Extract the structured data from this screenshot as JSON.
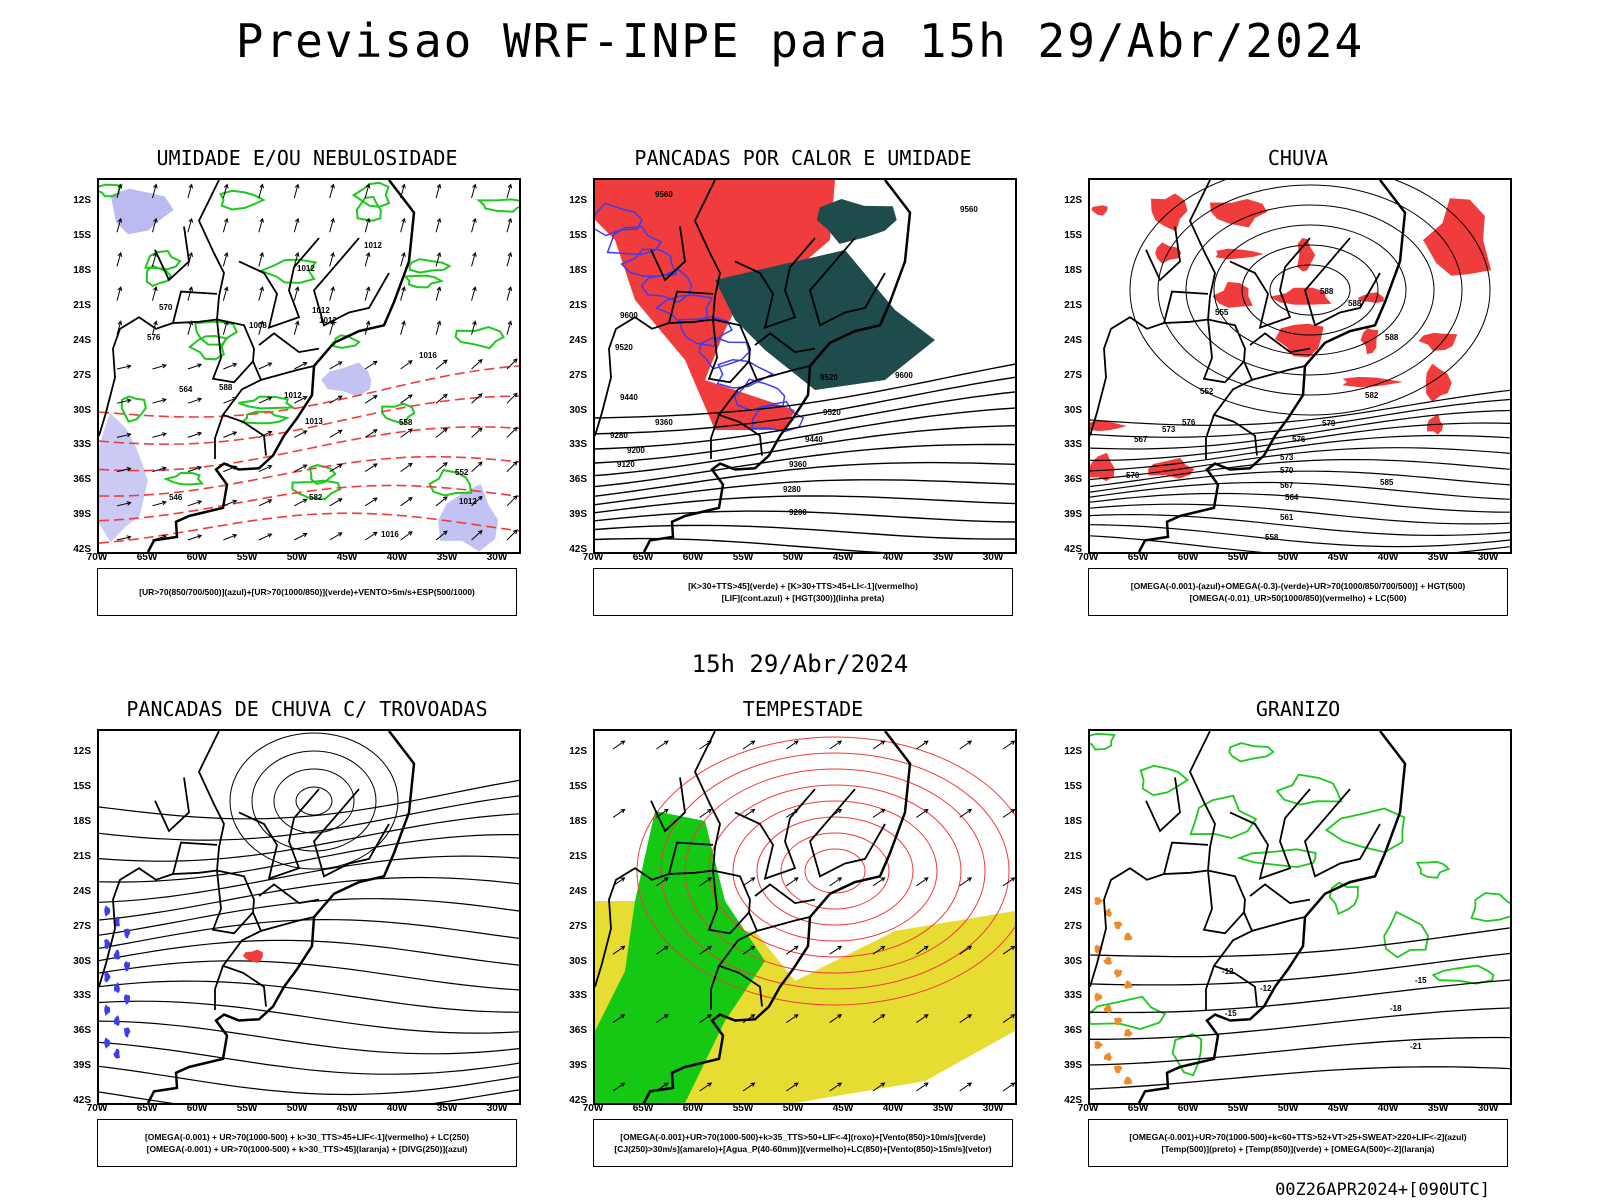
{
  "header": {
    "title": "Previsao WRF-INPE  para 15h 29/Abr/2024",
    "mid_date": "15h 29/Abr/2024",
    "run": "00Z26APR2024+[090UTC]"
  },
  "axes": {
    "lat_ticks": [
      "12S",
      "15S",
      "18S",
      "21S",
      "24S",
      "27S",
      "30S",
      "33S",
      "36S",
      "39S",
      "42S"
    ],
    "lon_ticks": [
      "70W",
      "65W",
      "60W",
      "55W",
      "50W",
      "45W",
      "40W",
      "35W",
      "30W"
    ]
  },
  "colors": {
    "frame": "#000000",
    "humidity_fill": "#b4b4f0",
    "green_contour": "#1ec81e",
    "red": "#f03c3c",
    "blue": "#3c3cf0",
    "dark_teal": "#1e4b4b",
    "yellow": "#e6dc32",
    "bright_green": "#14c814",
    "orange": "#f08c28"
  },
  "panels": [
    {
      "id": "umidade",
      "title": "UMIDADE E/OU NEBULOSIDADE",
      "legend": [
        "[UR>70(850/700/500)](azul)+[UR>70(1000/850)](verde)+VENTO>5m/s+ESP(500/1000)"
      ],
      "contour_labels": [
        "1012",
        "1012",
        "1012",
        "1008",
        "1012",
        "1016",
        "1012",
        "1013",
        "1012",
        "1016",
        "570",
        "576",
        "564",
        "558",
        "552",
        "546",
        "582",
        "588"
      ]
    },
    {
      "id": "pancadas-calor",
      "title": "PANCADAS POR CALOR E UMIDADE",
      "legend": [
        "[K>30+TTS>45](verde) + [K>30+TTS>45+LI<-1](vermelho)",
        "[LIF](cont.azul) + [HGT(300)](linha preta)"
      ],
      "contour_labels": [
        "9560",
        "9560",
        "9600",
        "9520",
        "9520",
        "9440",
        "9360",
        "9280",
        "9200",
        "9120",
        "9600",
        "9520",
        "9440",
        "9360",
        "9280",
        "9200"
      ]
    },
    {
      "id": "chuva",
      "title": "CHUVA",
      "legend": [
        "[OMEGA(-0.001)-(azul)+OMEGA(-0.3)-(verde)+UR>70(1000/850/700/500)] + HGT(500)",
        "[OMEGA(-0.01)_UR>50(1000/850)(vermelho) + LC(500)"
      ],
      "contour_labels": [
        "588",
        "588",
        "588",
        "585",
        "582",
        "579",
        "576",
        "573",
        "570",
        "567",
        "564",
        "561",
        "558",
        "555",
        "552",
        "576",
        "573",
        "570",
        "567"
      ]
    },
    {
      "id": "trovoadas",
      "title": "PANCADAS DE CHUVA C/ TROVOADAS",
      "legend": [
        "[OMEGA(-0.001) + UR>70(1000-500) + k>30_TTS>45+LIF<-1](vermelho) + LC(250)",
        "[OMEGA(-0.001) + UR>70(1000-500) + k>30_TTS>45](laranja) + [DIVG(250)](azul)"
      ],
      "contour_labels": []
    },
    {
      "id": "tempestade",
      "title": "TEMPESTADE",
      "legend": [
        "[OMEGA(-0.001)+UR>70(1000-500)+k>35_TTS>50+LIF<-4](roxo)+[Vento(850)>10m/s](verde)",
        "[CJ(250)>30m/s](amarelo)+[Agua_P(40-60mm)](vermelho)+LC(850)+[Vento(850)>15m/s](vetor)"
      ],
      "contour_labels": []
    },
    {
      "id": "granizo",
      "title": "GRANIZO",
      "legend": [
        "[OMEGA(-0.001)+UR>70(1000-500)+k<60+TTS>52+VT>25+SWEAT>220+LIF<-2](azul)",
        "[Temp(500)](preto) + [Temp(850)](verde) + [OMEGA(500)<-2](laranja)"
      ],
      "contour_labels": [
        "-12",
        "-12",
        "-15",
        "-15",
        "-18",
        "-21"
      ]
    }
  ]
}
